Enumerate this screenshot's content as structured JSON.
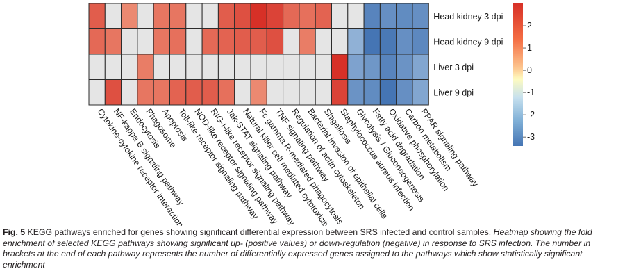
{
  "chart_data": {
    "type": "heatmap",
    "title": "",
    "xlabel": "",
    "ylabel": "",
    "rows": [
      "Head kidney 3 dpi",
      "Head kidney 9 dpi",
      "Liver 3 dpi",
      "Liver 9 dpi"
    ],
    "columns": [
      "Cytokine-cytokine receptor interaction",
      "NF-kappa B signaling pathway",
      "Endocytosis",
      "Phagosome",
      "Apoptosis",
      "Toll-like receptor signaling pathway",
      "NOD-like receptor signaling pathway",
      "RIG-I-like receptor signaling pathway",
      "Jak-STAT signaling pathway",
      "Natural killer cell mediated cytotoxicity",
      "Fc gamma R-mediated phagocytosis",
      "TNF signaling pathway",
      "Regulation of actin cytoskeleton",
      "Bacterial invasion of epithelial cells",
      "Shigellosis",
      "Staphylococcus aureus infection",
      "Glycolysis / Gluconeogenesis",
      "Fatty acid degradation",
      "Oxidative phosphorylation",
      "Carbon metabolism",
      "PPAR signaling pathway"
    ],
    "values": [
      [
        1.9,
        0,
        1.2,
        0,
        1.5,
        1.5,
        0,
        0,
        1.9,
        2.1,
        2.6,
        2.3,
        1.7,
        1.6,
        1.8,
        0,
        0,
        -2.4,
        -2.1,
        -2.2,
        -2.1
      ],
      [
        1.7,
        1.5,
        0,
        0,
        1.5,
        1.6,
        0,
        1.7,
        1.8,
        1.9,
        1.9,
        2.1,
        0,
        1.4,
        0,
        0,
        -1.2,
        -2.8,
        -2.7,
        -2.1,
        -2.3
      ],
      [
        0,
        0,
        0,
        1.4,
        0,
        0,
        0,
        0,
        0,
        0,
        0,
        0,
        0,
        0,
        0,
        2.6,
        -1.6,
        -1.9,
        -2.4,
        -2.0,
        -1.5
      ],
      [
        0,
        2.1,
        0,
        1.5,
        1.5,
        1.8,
        1.9,
        1.9,
        1.6,
        0,
        1.2,
        0,
        0,
        0,
        0,
        2.3,
        -2.0,
        -2.2,
        -2.8,
        -2.1,
        -1.5
      ]
    ],
    "scale": {
      "min": -3.4,
      "max": 3.0,
      "ticks": [
        2,
        1,
        0,
        -1,
        -2,
        -3
      ]
    },
    "colors": {
      "high": "#d73027",
      "mid": "#fefbc0",
      "low": "#4575b4"
    },
    "legend_position": "right",
    "grid": false
  },
  "caption": {
    "label": "Fig. 5",
    "text": " KEGG pathways enriched for genes showing significant differential expression between SRS infected and control samples.",
    "italic": " Heatmap showing the fold enrichment of selected KEGG pathways showing significant up- (positive values) or down-regulation (negative) in response to SRS infection. The number in brackets at the end of each pathway represents the number of differentially expressed genes assigned to the pathways which show statistically significant enrichment"
  }
}
